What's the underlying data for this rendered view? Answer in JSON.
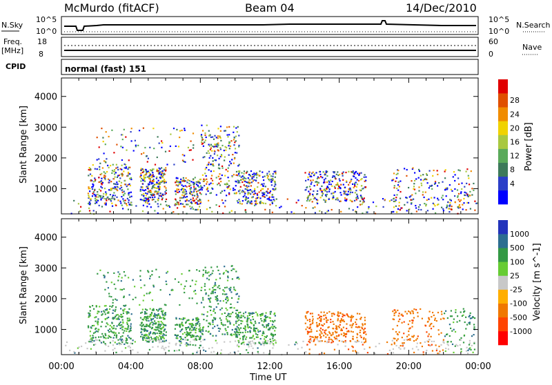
{
  "header": {
    "station": "McMurdo (fitACF)",
    "beam": "Beam 04",
    "date": "14/Dec/2010"
  },
  "small_panels": {
    "nsky_label": "N.Sky",
    "nsky_ticks": [
      "10^5",
      "10^0"
    ],
    "nsearch_label": "N.Search",
    "nsearch_ticks": [
      "10^5",
      "10^0"
    ],
    "freq_label": "Freq.",
    "freq_unit": "[MHz]",
    "freq_ticks": [
      "18",
      "8"
    ],
    "nave_label": "Nave",
    "nave_ticks": [
      "60",
      "0"
    ],
    "cpid_label": "CPID",
    "cpid_value": "normal (fast) 151"
  },
  "colors": {
    "power": [
      "#0000ff",
      "#2b3fc8",
      "#3d7a5a",
      "#5aaa5a",
      "#a8c840",
      "#f0d200",
      "#f08c00",
      "#e05000",
      "#e00000"
    ],
    "velocity": [
      "#ff0000",
      "#ff4400",
      "#f07800",
      "#ffae00",
      "#c8c8c8",
      "#66cc33",
      "#339944",
      "#2c6e90",
      "#2233bb"
    ]
  },
  "chart_data": [
    {
      "type": "heatmap",
      "title": "Power",
      "ylabel": "Slant Range [km]",
      "xlabel": "Time UT",
      "x_ticks": [
        "00:00",
        "04:00",
        "08:00",
        "12:00",
        "16:00",
        "20:00",
        "00:00"
      ],
      "y_ticks": [
        "1000",
        "2000",
        "3000",
        "4000"
      ],
      "ylim": [
        180,
        4600
      ],
      "xlim_hours": [
        0,
        24
      ],
      "colorbar_label": "Power [dB]",
      "colorbar_ticks": [
        "4",
        "8",
        "12",
        "16",
        "20",
        "24",
        "28"
      ]
    },
    {
      "type": "heatmap",
      "title": "Velocity",
      "ylabel": "Slant Range [km]",
      "xlabel": "Time UT",
      "x_ticks": [
        "00:00",
        "04:00",
        "08:00",
        "12:00",
        "16:00",
        "20:00",
        "00:00"
      ],
      "y_ticks": [
        "1000",
        "2000",
        "3000",
        "4000"
      ],
      "ylim": [
        180,
        4600
      ],
      "xlim_hours": [
        0,
        24
      ],
      "colorbar_label": "Velocity [m s^-1]",
      "colorbar_ticks": [
        "1000",
        "500",
        "100",
        "25",
        "-25",
        "-100",
        "-500",
        "-1000"
      ]
    }
  ]
}
